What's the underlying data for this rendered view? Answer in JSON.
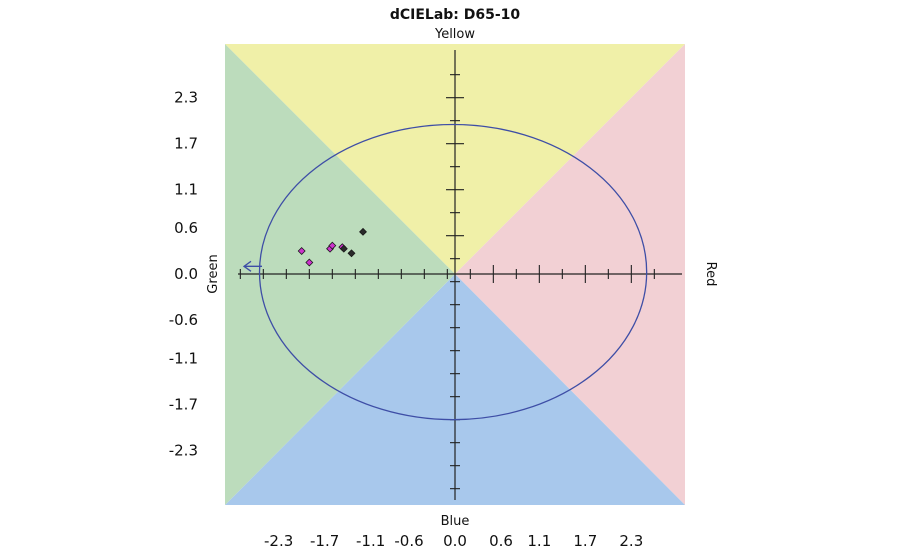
{
  "chart_data": {
    "type": "scatter",
    "title": "dCIELab: D65-10",
    "axis_labels": {
      "top": "Yellow",
      "bottom": "Blue",
      "left": "Green",
      "right": "Red"
    },
    "xlim": [
      -3.0,
      3.0
    ],
    "ylim": [
      -3.0,
      3.0
    ],
    "x_tick_labels": [
      "-2.3",
      "-1.7",
      "-1.1",
      "-0.6",
      "0.0",
      "0.6",
      "1.1",
      "1.7",
      "2.3"
    ],
    "y_tick_labels": [
      "2.3",
      "1.7",
      "1.1",
      "0.6",
      "0.0",
      "-0.6",
      "-1.1",
      "-1.7",
      "-2.3"
    ],
    "tolerance_ellipse": {
      "a_min": -2.55,
      "a_max": 2.5,
      "b_min": -1.9,
      "b_max": 1.95
    },
    "quadrant_colors": {
      "yellow": "#f0f0a8",
      "red": "#f2d0d4",
      "blue": "#a8c8ec",
      "green": "#bcdcbc"
    },
    "ellipse_color": "#3e4ea6",
    "series": [
      {
        "marker_color": "#cc33cc",
        "points": [
          [
            -2.0,
            0.3
          ],
          [
            -1.9,
            0.15
          ],
          [
            -1.63,
            0.33
          ],
          [
            -1.6,
            0.37
          ],
          [
            -1.47,
            0.35
          ]
        ]
      },
      {
        "marker_color": "#2a2a2a",
        "points": [
          [
            -1.2,
            0.55
          ],
          [
            -1.35,
            0.27
          ],
          [
            -1.45,
            0.33
          ]
        ]
      }
    ],
    "off_chart_arrow": {
      "direction": "left",
      "y": 0.1
    }
  }
}
